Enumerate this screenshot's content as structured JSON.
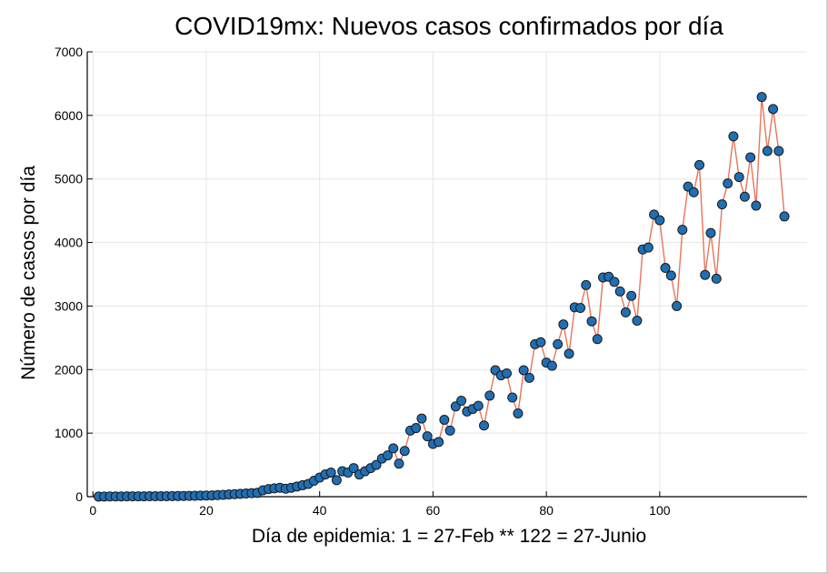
{
  "chart_data": {
    "type": "scatter",
    "title": "COVID19mx: Nuevos casos confirmados por día",
    "xlabel": "Día de epidemia: 1 = 27-Feb ** 122 = 27-Junio",
    "ylabel": "Número de casos por día",
    "xlim": [
      -1,
      126
    ],
    "ylim": [
      0,
      7000
    ],
    "x_ticks": [
      0,
      20,
      40,
      60,
      80,
      100
    ],
    "y_ticks": [
      0,
      1000,
      2000,
      3000,
      4000,
      5000,
      6000,
      7000
    ],
    "grid": true,
    "legend": "none",
    "marker_color": "#1f6fb4",
    "line_color": "#e8745a",
    "series": [
      {
        "x": [
          1,
          2,
          3,
          4,
          5,
          6,
          7,
          8,
          9,
          10,
          11,
          12,
          13,
          14,
          15,
          16,
          17,
          18,
          19,
          20,
          21,
          22,
          23,
          24,
          25,
          26,
          27,
          28,
          29,
          30,
          31,
          32,
          33,
          34,
          35,
          36,
          37,
          38,
          39,
          40,
          41,
          42,
          43,
          44,
          45,
          46,
          47,
          48,
          49,
          50,
          51,
          52,
          53,
          54,
          55,
          56,
          57,
          58,
          59,
          60,
          61,
          62,
          63,
          64,
          65,
          66,
          67,
          68,
          69,
          70,
          71,
          72,
          73,
          74,
          75,
          76,
          77,
          78,
          79,
          80,
          81,
          82,
          83,
          84,
          85,
          86,
          87,
          88,
          89,
          90,
          91,
          92,
          93,
          94,
          95,
          96,
          97,
          98,
          99,
          100,
          101,
          102,
          103,
          104,
          105,
          106,
          107,
          108,
          109,
          110,
          111,
          112,
          113,
          114,
          115,
          116,
          117,
          118,
          119,
          120,
          121,
          122
        ],
        "y": [
          1,
          2,
          3,
          3,
          4,
          5,
          5,
          6,
          6,
          7,
          7,
          8,
          8,
          9,
          10,
          11,
          12,
          14,
          16,
          18,
          20,
          25,
          28,
          35,
          40,
          45,
          50,
          55,
          60,
          100,
          120,
          130,
          140,
          125,
          140,
          160,
          180,
          200,
          250,
          300,
          350,
          380,
          260,
          400,
          380,
          450,
          350,
          400,
          450,
          500,
          600,
          650,
          760,
          520,
          720,
          1040,
          1080,
          1230,
          950,
          830,
          860,
          1210,
          1040,
          1420,
          1510,
          1340,
          1380,
          1430,
          1120,
          1590,
          1990,
          1910,
          1940,
          1560,
          1310,
          1990,
          1870,
          2400,
          2430,
          2110,
          2060,
          2400,
          2710,
          2250,
          2980,
          2970,
          3330,
          2760,
          2480,
          3450,
          3460,
          3380,
          3230,
          2900,
          3160,
          2770,
          3890,
          3920,
          4440,
          4350,
          3600,
          3480,
          3000,
          4200,
          4880,
          4790,
          5220,
          3490,
          4150,
          3430,
          4600,
          4930,
          5670,
          5030,
          4720,
          5340,
          4580,
          6290,
          5440,
          6100,
          5440,
          4410
        ]
      }
    ]
  }
}
